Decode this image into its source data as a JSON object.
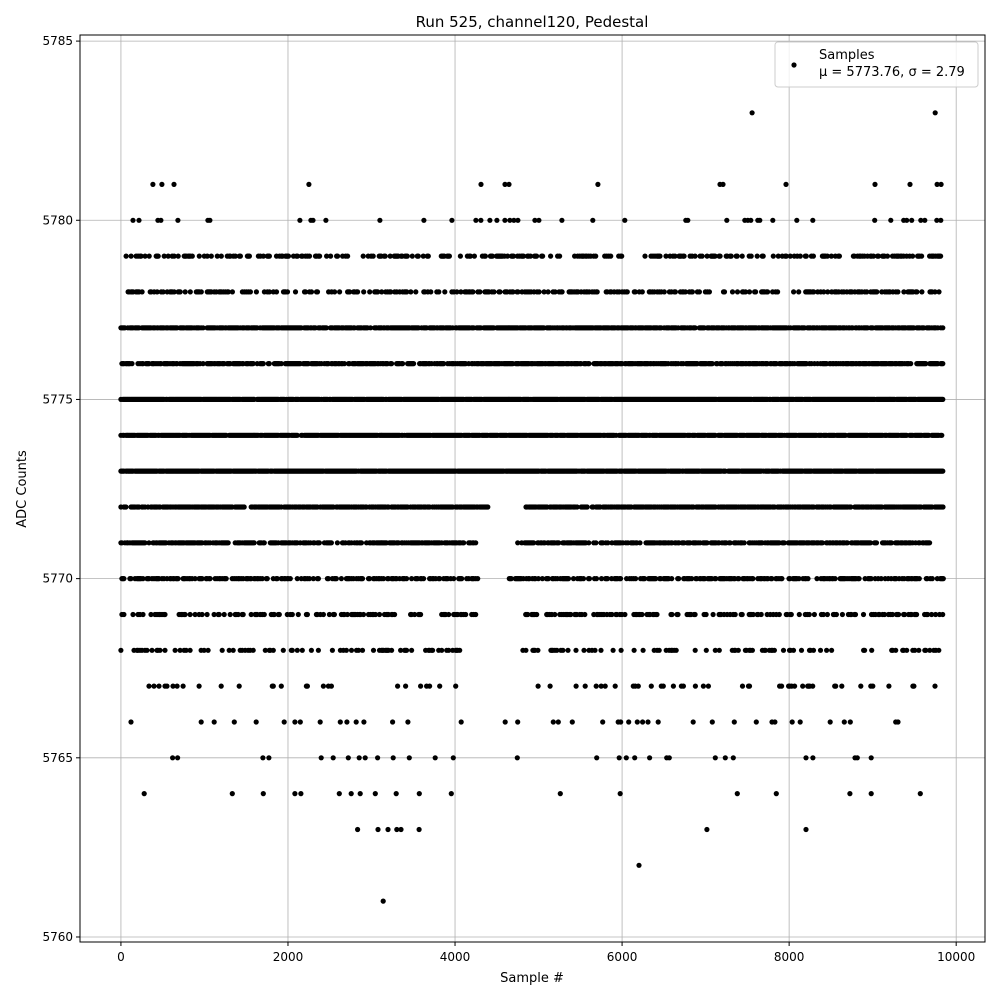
{
  "chart_data": {
    "type": "scatter",
    "title": "Run 525, channel120, Pedestal",
    "xlabel": "Sample #",
    "ylabel": "ADC Counts",
    "xlim": [
      -490,
      10345
    ],
    "ylim": [
      5759.86,
      5785.17
    ],
    "xticks": [
      0,
      2000,
      4000,
      6000,
      8000,
      10000
    ],
    "yticks": [
      5760,
      5765,
      5770,
      5775,
      5780,
      5785
    ],
    "grid": true,
    "legend": {
      "placement": "top-right",
      "label": "Samples",
      "stats": "μ = 5773.76, σ = 2.79"
    },
    "marker_color": "#000000",
    "grid_color": "#b0b0b0",
    "sparse_levels": [
      {
        "y": 5783,
        "x": [
          7557,
          9749
        ]
      },
      {
        "y": 5781,
        "x": [
          383,
          491,
          635,
          2251,
          4311,
          4598,
          4646,
          5710,
          7172,
          7208,
          7962,
          9028,
          9447,
          9771,
          9819
        ]
      },
      {
        "y": 5780,
        "x": [
          144,
          216,
          443,
          479,
          682,
          1041,
          1065,
          2143,
          2275,
          2299,
          2454,
          3101,
          3627,
          3962,
          4250,
          4310,
          4417,
          4501,
          4597,
          4657,
          4705,
          4753,
          4956,
          5004,
          5279,
          5650,
          6033,
          6763,
          6787,
          7254,
          7469,
          7505,
          7541,
          7625,
          7649,
          7804,
          8092,
          8283,
          9025,
          9217,
          9372,
          9408,
          9468,
          9576,
          9624,
          9768,
          9816
        ]
      },
      {
        "y": 5766,
        "x": [
          120,
          961,
          1117,
          1357,
          1620,
          1955,
          2083,
          2147,
          2386,
          2626,
          2706,
          2817,
          2909,
          3253,
          3436,
          4074,
          4601,
          4750,
          5176,
          5236,
          5404,
          5768,
          5954,
          5983,
          6079,
          6182,
          6246,
          6310,
          6433,
          6852,
          7080,
          7343,
          7607,
          7795,
          7830,
          8037,
          8133,
          8492,
          8660,
          8732,
          9276,
          9303
        ]
      },
      {
        "y": 5765,
        "x": [
          619,
          679,
          1700,
          1772,
          2398,
          2542,
          2722,
          2853,
          2925,
          3073,
          3260,
          3452,
          3763,
          3979,
          4745,
          5696,
          5966,
          6050,
          6151,
          6330,
          6534,
          6565,
          7116,
          7236,
          7331,
          8202,
          8285,
          8788,
          8816,
          8983
        ]
      },
      {
        "y": 5764,
        "x": [
          279,
          1333,
          1704,
          2083,
          2155,
          2614,
          2757,
          2865,
          3045,
          3296,
          3572,
          3955,
          5260,
          5978,
          7379,
          7846,
          8728,
          8983,
          9570
        ]
      },
      {
        "y": 5763,
        "x": [
          2833,
          3078,
          3198,
          3303,
          3353,
          3570,
          7016,
          8202
        ]
      },
      {
        "y": 5762,
        "x": [
          6202
        ]
      },
      {
        "y": 5761,
        "x": [
          3140
        ]
      }
    ],
    "dense_levels": [
      {
        "y": 5779,
        "ranges": [
          [
            50,
            2800
          ],
          [
            2900,
            6000
          ],
          [
            6250,
            9850
          ]
        ],
        "density": 0.35
      },
      {
        "y": 5778,
        "ranges": [
          [
            50,
            9850
          ]
        ],
        "density": 0.35
      },
      {
        "y": 5777,
        "ranges": [
          [
            0,
            9850
          ]
        ],
        "density": 0.8
      },
      {
        "y": 5776,
        "ranges": [
          [
            0,
            9850
          ]
        ],
        "density": 0.7
      },
      {
        "y": 5775,
        "ranges": [
          [
            0,
            9850
          ]
        ],
        "density": 0.95
      },
      {
        "y": 5774,
        "ranges": [
          [
            0,
            9850
          ]
        ],
        "density": 0.9
      },
      {
        "y": 5773,
        "ranges": [
          [
            0,
            9850
          ]
        ],
        "density": 0.95
      },
      {
        "y": 5772,
        "ranges": [
          [
            0,
            4400
          ],
          [
            4850,
            9850
          ]
        ],
        "density": 0.8
      },
      {
        "y": 5771,
        "ranges": [
          [
            0,
            4250
          ],
          [
            4750,
            9700
          ]
        ],
        "density": 0.6
      },
      {
        "y": 5770,
        "ranges": [
          [
            0,
            4300
          ],
          [
            4650,
            9850
          ]
        ],
        "density": 0.5
      },
      {
        "y": 5769,
        "ranges": [
          [
            0,
            4250
          ],
          [
            4750,
            9850
          ]
        ],
        "density": 0.3
      },
      {
        "y": 5768,
        "ranges": [
          [
            0,
            4100
          ],
          [
            4800,
            9850
          ]
        ],
        "density": 0.2
      },
      {
        "y": 5767,
        "ranges": [
          [
            300,
            4100
          ],
          [
            4850,
            9750
          ]
        ],
        "density": 0.1
      }
    ]
  }
}
